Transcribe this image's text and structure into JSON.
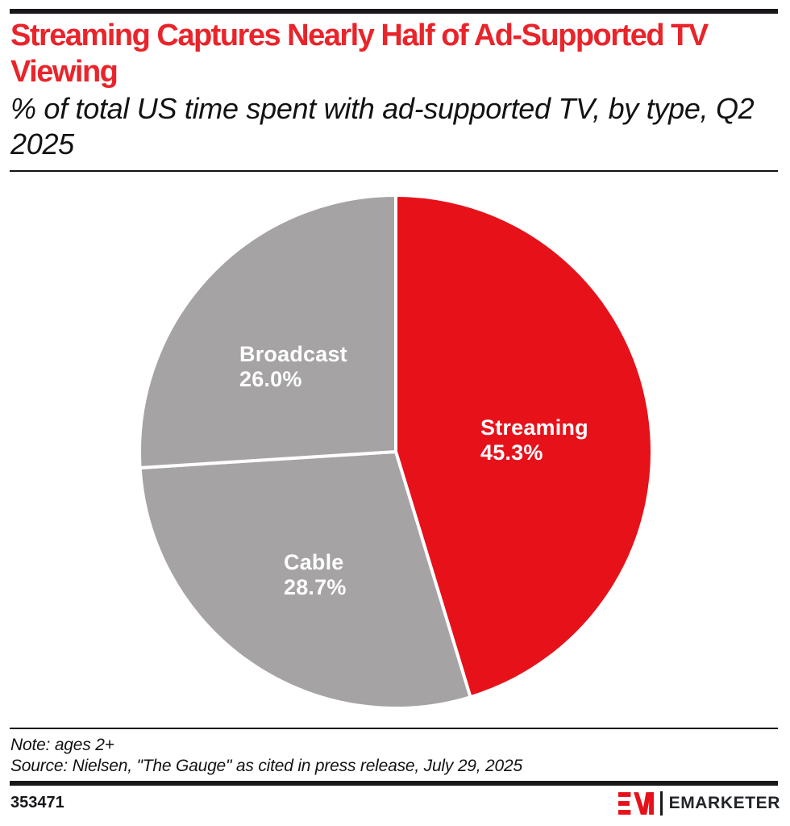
{
  "header": {
    "title": "Streaming Captures Nearly Half of Ad-Supported TV Viewing",
    "subtitle": "% of total US time spent with ad-supported TV, by type, Q2 2025",
    "title_color": "#E9242A"
  },
  "chart_data": {
    "type": "pie",
    "title": "Streaming Captures Nearly Half of Ad-Supported TV Viewing",
    "subtitle": "% of total US time spent with ad-supported TV, by type, Q2 2025",
    "start_angle_deg": 0,
    "direction": "clockwise",
    "total": 100,
    "slices": [
      {
        "label": "Streaming",
        "value": 45.3,
        "display": "45.3%",
        "color": "#E7111A",
        "text_color": "#FFFFFF"
      },
      {
        "label": "Cable",
        "value": 28.7,
        "display": "28.7%",
        "color": "#A5A3A4",
        "text_color": "#FFFFFF"
      },
      {
        "label": "Broadcast",
        "value": 26.0,
        "display": "26.0%",
        "color": "#A5A3A4",
        "text_color": "#FFFFFF"
      }
    ],
    "slice_gap_color": "#FFFFFF"
  },
  "footnotes": {
    "note": "Note: ages 2+",
    "source": "Source: Nielsen, \"The Gauge\" as cited in press release, July 29, 2025"
  },
  "footer": {
    "chart_id": "353471",
    "brand": "EMARKETER",
    "brand_red": "#E7111A"
  }
}
